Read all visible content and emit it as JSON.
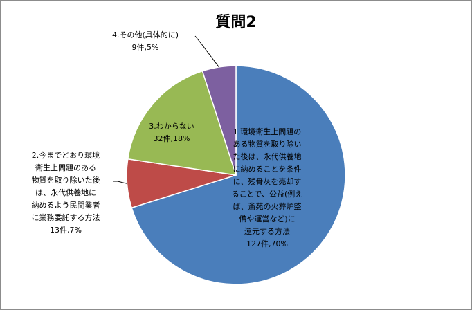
{
  "chart_data": {
    "type": "pie",
    "title": "質問2",
    "slices": [
      {
        "name": "1.環境衛生上問題のある物質を取り除いた後は、永代供養地に納めることを条件に、残骨灰を売却することで、公益(例えば、斎苑の火葬炉整備や運営など)に還元する方法",
        "count": 127,
        "percent": 70,
        "color": "#4a7ebb",
        "label_lines": [
          "1.環境衛生上問題の",
          "ある物質を取り除い",
          "た後は、永代供養地",
          "に納めることを条件",
          "に、残骨灰を売却す",
          "ることで、公益(例え",
          "ば、斎苑の火葬炉整",
          "備や運営など)に",
          "還元する方法"
        ],
        "value_label": "127件,70%"
      },
      {
        "name": "2.今までどおり環境衛生上問題のある物質を取り除いた後は、永代供養地に納めるよう民間業者に業務委託する方法",
        "count": 13,
        "percent": 7,
        "color": "#be4b48",
        "label_lines": [
          "2.今までどおり環境",
          "衛生上問題のある",
          "物質を取り除いた後",
          "は、永代供養地に",
          "納めるよう民間業者",
          "に業務委託する方法"
        ],
        "value_label": "13件,7%"
      },
      {
        "name": "3.わからない",
        "count": 32,
        "percent": 18,
        "color": "#98b954",
        "label_lines": [
          "3.わからない"
        ],
        "value_label": "32件,18%"
      },
      {
        "name": "4.その他(具体的に)",
        "count": 9,
        "percent": 5,
        "color": "#7d60a0",
        "label_lines": [
          "4.その他(具体的に)"
        ],
        "value_label": "9件,5%"
      }
    ]
  }
}
